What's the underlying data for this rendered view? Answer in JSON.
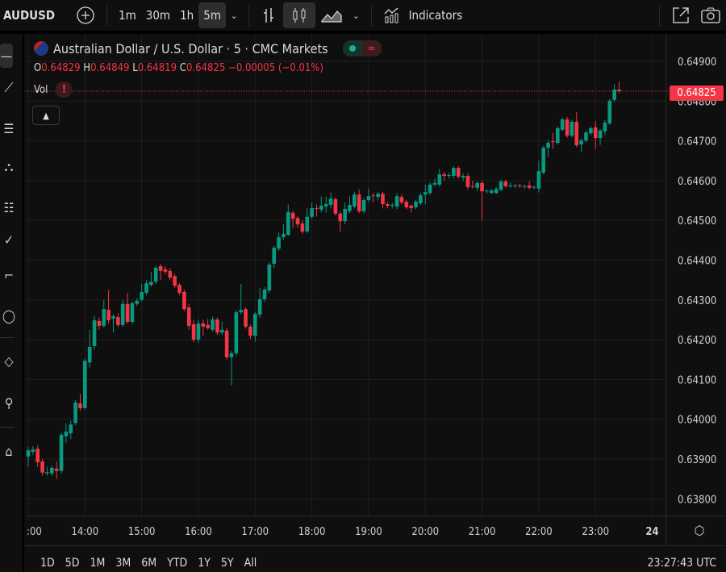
{
  "toolbar": {
    "symbol": "AUDUSD",
    "intervals": [
      "1m",
      "30m",
      "1h",
      "5m"
    ],
    "active_interval": "5m",
    "indicators_label": "Indicators"
  },
  "legend": {
    "title": "Australian Dollar / U.S. Dollar · 5 · CMC Markets",
    "o_label": "O",
    "o": "0.64829",
    "h_label": "H",
    "h": "0.64849",
    "l_label": "L",
    "l": "0.64819",
    "c_label": "C",
    "c": "0.64825",
    "change": "−0.00005 (−0.01%)",
    "vol_label": "Vol",
    "vol_warning": "!",
    "status_glyph": "≈"
  },
  "current_price_label": "0.64825",
  "range_buttons": [
    "1D",
    "5D",
    "1M",
    "3M",
    "6M",
    "YTD",
    "1Y",
    "5Y",
    "All"
  ],
  "clock": "23:27:43 UTC",
  "colors": {
    "up": "#089981",
    "down": "#f23645",
    "background": "#0f0f0f",
    "grid": "#1f1f1f"
  },
  "chart_data": {
    "type": "candlestick",
    "interval": "5m",
    "start_time": "13:00",
    "ylim": [
      0.6377,
      0.6495
    ],
    "y_ticks": [
      "0.64900",
      "0.64800",
      "0.64700",
      "0.64600",
      "0.64500",
      "0.64400",
      "0.64300",
      "0.64200",
      "0.64100",
      "0.64000",
      "0.63900",
      "0.63800"
    ],
    "x_ticks": [
      ":00",
      "14:00",
      "15:00",
      "16:00",
      "17:00",
      "18:00",
      "19:00",
      "20:00",
      "21:00",
      "22:00",
      "23:00",
      "24"
    ],
    "grid": true,
    "current_price": 0.64825,
    "ohlc": [
      [
        0.63906,
        0.6393,
        0.6388,
        0.63922
      ],
      [
        0.63918,
        0.63932,
        0.6391,
        0.63924
      ],
      [
        0.63926,
        0.63934,
        0.6388,
        0.63892
      ],
      [
        0.63894,
        0.639,
        0.63858,
        0.63866
      ],
      [
        0.63864,
        0.6388,
        0.63858,
        0.63867
      ],
      [
        0.63864,
        0.63884,
        0.63858,
        0.63878
      ],
      [
        0.63876,
        0.63894,
        0.6385,
        0.6387
      ],
      [
        0.6387,
        0.63966,
        0.63864,
        0.63961
      ],
      [
        0.63957,
        0.6399,
        0.6394,
        0.63969
      ],
      [
        0.63965,
        0.63996,
        0.6395,
        0.63987
      ],
      [
        0.63991,
        0.64048,
        0.63985,
        0.64042
      ],
      [
        0.6404,
        0.64064,
        0.64022,
        0.64028
      ],
      [
        0.64028,
        0.64152,
        0.64025,
        0.64147
      ],
      [
        0.64143,
        0.64225,
        0.6413,
        0.64182
      ],
      [
        0.64184,
        0.6426,
        0.64175,
        0.64249
      ],
      [
        0.64247,
        0.64256,
        0.64225,
        0.64235
      ],
      [
        0.64235,
        0.643,
        0.6423,
        0.64277
      ],
      [
        0.64275,
        0.64325,
        0.6424,
        0.64249
      ],
      [
        0.64253,
        0.64264,
        0.64218,
        0.64259
      ],
      [
        0.64257,
        0.64266,
        0.64232,
        0.64237
      ],
      [
        0.64237,
        0.643,
        0.64232,
        0.6429
      ],
      [
        0.6429,
        0.64318,
        0.6424,
        0.64245
      ],
      [
        0.64245,
        0.64296,
        0.6424,
        0.64292
      ],
      [
        0.6429,
        0.64304,
        0.64285,
        0.64298
      ],
      [
        0.643,
        0.6434,
        0.64296,
        0.6432
      ],
      [
        0.64318,
        0.6435,
        0.64312,
        0.64342
      ],
      [
        0.64338,
        0.6437,
        0.64334,
        0.64346
      ],
      [
        0.64346,
        0.64386,
        0.6434,
        0.64381
      ],
      [
        0.64385,
        0.6439,
        0.6435,
        0.64373
      ],
      [
        0.64377,
        0.64385,
        0.64364,
        0.64371
      ],
      [
        0.64373,
        0.6438,
        0.6435,
        0.64356
      ],
      [
        0.6436,
        0.64366,
        0.6433,
        0.64336
      ],
      [
        0.64338,
        0.64342,
        0.64312,
        0.64318
      ],
      [
        0.6432,
        0.64326,
        0.64272,
        0.64277
      ],
      [
        0.64281,
        0.6429,
        0.64225,
        0.64235
      ],
      [
        0.64239,
        0.6425,
        0.64194,
        0.642
      ],
      [
        0.642,
        0.6425,
        0.64192,
        0.64241
      ],
      [
        0.64241,
        0.6425,
        0.6421,
        0.64233
      ],
      [
        0.64237,
        0.64252,
        0.64225,
        0.64229
      ],
      [
        0.64225,
        0.64258,
        0.6422,
        0.64251
      ],
      [
        0.64251,
        0.64256,
        0.64212,
        0.64218
      ],
      [
        0.64218,
        0.64246,
        0.64212,
        0.64225
      ],
      [
        0.64223,
        0.6423,
        0.6415,
        0.64156
      ],
      [
        0.64156,
        0.64172,
        0.64085,
        0.64166
      ],
      [
        0.64166,
        0.64274,
        0.6416,
        0.64269
      ],
      [
        0.64269,
        0.6434,
        0.64264,
        0.64275
      ],
      [
        0.64277,
        0.64282,
        0.64228,
        0.64233
      ],
      [
        0.64233,
        0.64238,
        0.64202,
        0.6421
      ],
      [
        0.6421,
        0.6427,
        0.64195,
        0.64265
      ],
      [
        0.64263,
        0.6433,
        0.64255,
        0.64302
      ],
      [
        0.64302,
        0.64332,
        0.64296,
        0.64326
      ],
      [
        0.64324,
        0.64394,
        0.64318,
        0.64389
      ],
      [
        0.64391,
        0.64436,
        0.6438,
        0.64431
      ],
      [
        0.64429,
        0.6447,
        0.64424,
        0.64458
      ],
      [
        0.64458,
        0.6449,
        0.64452,
        0.64466
      ],
      [
        0.64464,
        0.6454,
        0.6446,
        0.64521
      ],
      [
        0.64519,
        0.64524,
        0.6448,
        0.64504
      ],
      [
        0.64506,
        0.64512,
        0.64482,
        0.6449
      ],
      [
        0.64492,
        0.645,
        0.64466,
        0.64472
      ],
      [
        0.64472,
        0.6453,
        0.64468,
        0.64509
      ],
      [
        0.64509,
        0.64545,
        0.64503,
        0.64531
      ],
      [
        0.64531,
        0.6454,
        0.6451,
        0.64529
      ],
      [
        0.64527,
        0.6456,
        0.6452,
        0.64537
      ],
      [
        0.64535,
        0.6456,
        0.6452,
        0.64541
      ],
      [
        0.64539,
        0.6457,
        0.6453,
        0.64555
      ],
      [
        0.64553,
        0.64558,
        0.64512,
        0.64517
      ],
      [
        0.64517,
        0.64522,
        0.64472,
        0.64498
      ],
      [
        0.64498,
        0.64545,
        0.6449,
        0.64529
      ],
      [
        0.64523,
        0.6456,
        0.64518,
        0.64539
      ],
      [
        0.64535,
        0.64572,
        0.6453,
        0.64565
      ],
      [
        0.64565,
        0.64578,
        0.64518,
        0.64523
      ],
      [
        0.64523,
        0.64556,
        0.64518,
        0.64551
      ],
      [
        0.64551,
        0.6458,
        0.64546,
        0.64561
      ],
      [
        0.64563,
        0.6457,
        0.64545,
        0.64561
      ],
      [
        0.64559,
        0.64572,
        0.6455,
        0.64567
      ],
      [
        0.64567,
        0.64572,
        0.6453,
        0.64541
      ],
      [
        0.64541,
        0.64546,
        0.6453,
        0.64537
      ],
      [
        0.64537,
        0.64544,
        0.6453,
        0.64539
      ],
      [
        0.64535,
        0.64568,
        0.64528,
        0.64561
      ],
      [
        0.64559,
        0.64566,
        0.6454,
        0.64545
      ],
      [
        0.64547,
        0.64552,
        0.64528,
        0.64533
      ],
      [
        0.64537,
        0.6454,
        0.6452,
        0.64531
      ],
      [
        0.64533,
        0.64552,
        0.64528,
        0.64547
      ],
      [
        0.64543,
        0.6457,
        0.64538,
        0.64563
      ],
      [
        0.64565,
        0.6459,
        0.6454,
        0.64571
      ],
      [
        0.64569,
        0.64595,
        0.64564,
        0.6459
      ],
      [
        0.6459,
        0.64605,
        0.64585,
        0.64594
      ],
      [
        0.6459,
        0.6463,
        0.64585,
        0.64616
      ],
      [
        0.64616,
        0.64622,
        0.646,
        0.64612
      ],
      [
        0.64612,
        0.6462,
        0.64606,
        0.64614
      ],
      [
        0.64612,
        0.64636,
        0.64606,
        0.64632
      ],
      [
        0.64632,
        0.64636,
        0.64605,
        0.6461
      ],
      [
        0.64608,
        0.64618,
        0.646,
        0.64612
      ],
      [
        0.64612,
        0.64618,
        0.64578,
        0.64584
      ],
      [
        0.64586,
        0.646,
        0.6458,
        0.64584
      ],
      [
        0.64582,
        0.64598,
        0.64574,
        0.64594
      ],
      [
        0.64594,
        0.646,
        0.645,
        0.64573
      ],
      [
        0.64573,
        0.64578,
        0.64568,
        0.64575
      ],
      [
        0.64569,
        0.6458,
        0.64566,
        0.64575
      ],
      [
        0.64569,
        0.64584,
        0.64566,
        0.64579
      ],
      [
        0.64577,
        0.64602,
        0.64574,
        0.64598
      ],
      [
        0.64598,
        0.64602,
        0.64582,
        0.64586
      ],
      [
        0.64586,
        0.64595,
        0.64582,
        0.64588
      ],
      [
        0.64586,
        0.64592,
        0.64582,
        0.64588
      ],
      [
        0.64588,
        0.64592,
        0.64582,
        0.64586
      ],
      [
        0.64584,
        0.6459,
        0.6458,
        0.64586
      ],
      [
        0.64588,
        0.64598,
        0.64578,
        0.64582
      ],
      [
        0.64582,
        0.64588,
        0.64578,
        0.64584
      ],
      [
        0.6458,
        0.6465,
        0.6457,
        0.64624
      ],
      [
        0.6462,
        0.64688,
        0.64615,
        0.64683
      ],
      [
        0.64683,
        0.64702,
        0.6466,
        0.64695
      ],
      [
        0.64699,
        0.6472,
        0.6468,
        0.64697
      ],
      [
        0.64695,
        0.64736,
        0.6469,
        0.64732
      ],
      [
        0.64728,
        0.64758,
        0.64724,
        0.64754
      ],
      [
        0.64754,
        0.6476,
        0.64708,
        0.64713
      ],
      [
        0.64713,
        0.64752,
        0.64708,
        0.64748
      ],
      [
        0.64748,
        0.64772,
        0.64684,
        0.64689
      ],
      [
        0.64691,
        0.64706,
        0.64672,
        0.64701
      ],
      [
        0.64701,
        0.64726,
        0.64696,
        0.64721
      ],
      [
        0.64719,
        0.64736,
        0.64714,
        0.64732
      ],
      [
        0.64734,
        0.6475,
        0.6468,
        0.64707
      ],
      [
        0.64707,
        0.6473,
        0.6469,
        0.64726
      ],
      [
        0.64724,
        0.64752,
        0.64715,
        0.64746
      ],
      [
        0.64744,
        0.64806,
        0.6474,
        0.64801
      ],
      [
        0.64803,
        0.64842,
        0.64798,
        0.64829
      ],
      [
        0.64829,
        0.64849,
        0.64819,
        0.64825
      ]
    ]
  }
}
